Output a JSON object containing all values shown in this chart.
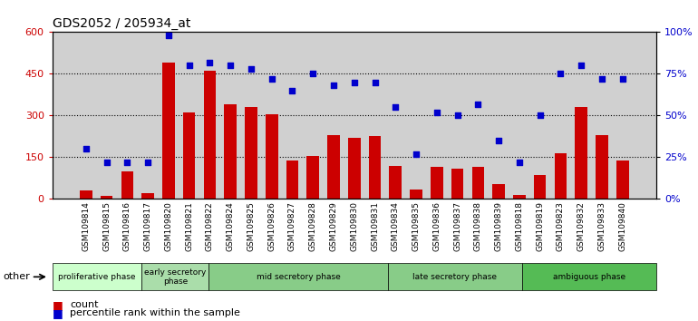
{
  "title": "GDS2052 / 205934_at",
  "categories": [
    "GSM109814",
    "GSM109815",
    "GSM109816",
    "GSM109817",
    "GSM109820",
    "GSM109821",
    "GSM109822",
    "GSM109824",
    "GSM109825",
    "GSM109826",
    "GSM109827",
    "GSM109828",
    "GSM109829",
    "GSM109830",
    "GSM109831",
    "GSM109834",
    "GSM109835",
    "GSM109836",
    "GSM109837",
    "GSM109838",
    "GSM109839",
    "GSM109818",
    "GSM109819",
    "GSM109823",
    "GSM109832",
    "GSM109833",
    "GSM109840"
  ],
  "bar_values": [
    30,
    10,
    100,
    20,
    490,
    310,
    460,
    340,
    330,
    305,
    140,
    155,
    230,
    220,
    225,
    120,
    35,
    115,
    110,
    115,
    55,
    15,
    85,
    165,
    330,
    230,
    140
  ],
  "dot_values": [
    30,
    22,
    22,
    22,
    98,
    80,
    82,
    80,
    78,
    72,
    65,
    75,
    68,
    70,
    70,
    55,
    27,
    52,
    50,
    57,
    35,
    22,
    50,
    75,
    80,
    72,
    72
  ],
  "bar_color": "#cc0000",
  "dot_color": "#0000cc",
  "ylim_left": [
    0,
    600
  ],
  "ylim_right": [
    0,
    100
  ],
  "yticks_left": [
    0,
    150,
    300,
    450,
    600
  ],
  "yticks_right": [
    0,
    25,
    50,
    75,
    100
  ],
  "ytick_labels_right": [
    "0%",
    "25%",
    "50%",
    "75%",
    "100%"
  ],
  "grid_color": "black",
  "grid_style": "dotted",
  "phase_groups": [
    {
      "label": "proliferative phase",
      "start": 0,
      "end": 4,
      "color": "#ccffcc"
    },
    {
      "label": "early secretory\nphase",
      "start": 4,
      "end": 7,
      "color": "#99ff99"
    },
    {
      "label": "mid secretory phase",
      "start": 7,
      "end": 15,
      "color": "#66cc66"
    },
    {
      "label": "late secretory phase",
      "start": 15,
      "end": 21,
      "color": "#66cc66"
    },
    {
      "label": "ambiguous phase",
      "start": 21,
      "end": 27,
      "color": "#44aa44"
    }
  ],
  "other_label": "other",
  "legend_count_label": "count",
  "legend_pct_label": "percentile rank within the sample",
  "bg_color": "#ffffff",
  "tick_area_color": "#d0d0d0",
  "left_axis_color": "#cc0000",
  "right_axis_color": "#0000cc"
}
